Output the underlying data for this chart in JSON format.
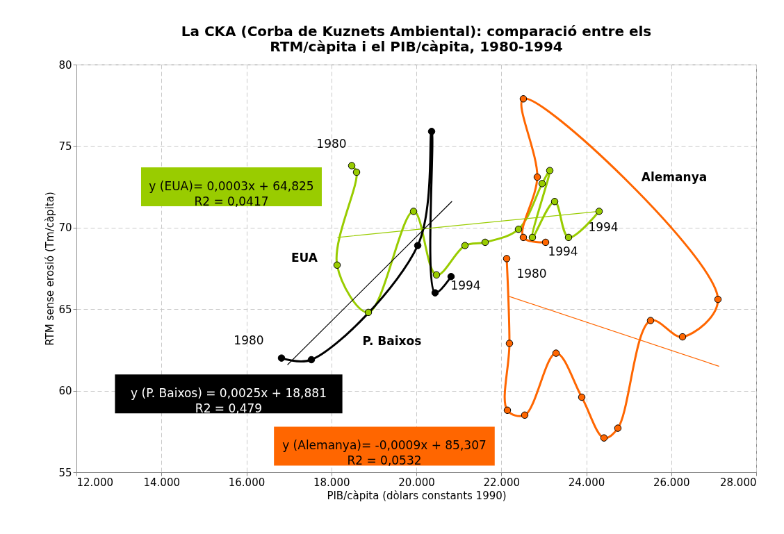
{
  "chart_data": {
    "type": "line",
    "title": "La CKA (Corba de Kuznets Ambiental): comparació entre els\nRTM/càpita i el PIB/càpita, 1980-1994",
    "xlabel": "PIB/càpita (dòlars constants 1990)",
    "ylabel": "RTM sense erosió (Tm/càpita)",
    "xlim": [
      12000,
      28000
    ],
    "xticks": [
      {
        "value": 12000,
        "label": "12.000"
      },
      {
        "value": 14000,
        "label": "14.000"
      },
      {
        "value": 16000,
        "label": "16.000"
      },
      {
        "value": 18000,
        "label": "18.000"
      },
      {
        "value": 20000,
        "label": "20.000"
      },
      {
        "value": 22000,
        "label": "22.000"
      },
      {
        "value": 24000,
        "label": "24.000"
      },
      {
        "value": 26000,
        "label": "26.000"
      },
      {
        "value": 28000,
        "label": "28.000"
      }
    ],
    "ylim": [
      55,
      80
    ],
    "yticks": [
      55,
      60,
      65,
      70,
      75,
      80
    ],
    "grid": true,
    "line_style": "solid",
    "series": [
      {
        "color": "#99cc00",
        "marker": "circle",
        "x": [
          18479,
          18593,
          18135,
          18871,
          19935,
          20474,
          21145,
          21620,
          22405,
          22961,
          23141,
          22732,
          23256,
          23583,
          24303
        ],
        "values": [
          73.8,
          73.4,
          67.7,
          64.8,
          71.0,
          67.1,
          68.9,
          69.1,
          69.9,
          72.7,
          73.5,
          69.4,
          71.6,
          69.4,
          71.0
        ]
      },
      {
        "color": "#000000",
        "marker": "circle",
        "x": [
          16826,
          17530,
          20033,
          20360,
          20442,
          20818
        ],
        "values": [
          62.0,
          61.9,
          68.9,
          75.9,
          66.0,
          67.0
        ]
      },
      {
        "color": "#ff6600",
        "marker": "circle",
        "x": [
          22127,
          22192,
          22143,
          22552,
          23288,
          23894,
          24417,
          24744,
          25513,
          26266,
          27100,
          22519,
          22847,
          22519,
          23043
        ],
        "values": [
          68.1,
          62.9,
          58.8,
          58.5,
          62.3,
          59.6,
          57.1,
          57.7,
          64.3,
          63.3,
          65.6,
          77.9,
          73.1,
          69.4,
          69.1
        ]
      },
      {
        "color": "#99cc00",
        "marker": "none",
        "x": [
          18151,
          24303
        ],
        "values": [
          69.4,
          71.0
        ]
      },
      {
        "color": "#000000",
        "marker": "none",
        "x": [
          16973,
          20834
        ],
        "values": [
          61.6,
          71.6
        ]
      },
      {
        "color": "#ff6600",
        "marker": "none",
        "x": [
          22160,
          27120
        ],
        "values": [
          65.8,
          61.5
        ]
      }
    ],
    "annotations": [
      "1980",
      "EUA",
      "1994",
      "P. Baixos",
      "1980",
      "1980",
      "1994",
      "1994",
      "Alemanya",
      "y (EUA)= 0,0003x + 64,825\nR2 = 0,0417",
      "y (P. Baixos) = 0,0025x + 18,881\nR2 = 0,479",
      "y (Alemanya)= -0,0009x + 85,307\nR2 = 0,0532"
    ]
  }
}
